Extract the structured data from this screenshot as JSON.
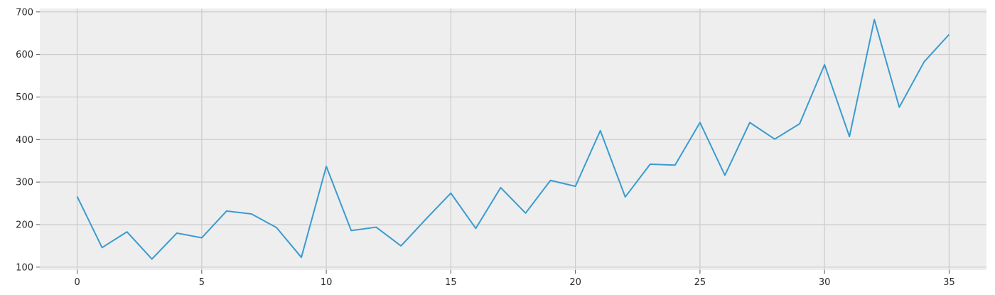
{
  "chart_data": {
    "type": "line",
    "title": "",
    "xlabel": "",
    "ylabel": "",
    "x": [
      0,
      1,
      2,
      3,
      4,
      5,
      6,
      7,
      8,
      9,
      10,
      11,
      12,
      13,
      14,
      15,
      16,
      17,
      18,
      19,
      20,
      21,
      22,
      23,
      24,
      25,
      26,
      27,
      28,
      29,
      30,
      31,
      32,
      33,
      34,
      35
    ],
    "series": [
      {
        "values": [
          266,
          146,
          183,
          119,
          180,
          169,
          232,
          225,
          193,
          123,
          337,
          186,
          194,
          150,
          213,
          274,
          191,
          287,
          227,
          304,
          290,
          421,
          265,
          342,
          340,
          440,
          316,
          440,
          401,
          437,
          576,
          407,
          682,
          476,
          583,
          647
        ],
        "color": "#3a9bd0"
      }
    ],
    "xlim": [
      -1.5,
      36.5
    ],
    "ylim": [
      93,
      708
    ],
    "xticks": [
      0,
      5,
      10,
      15,
      20,
      25,
      30,
      35
    ],
    "yticks": [
      100,
      200,
      300,
      400,
      500,
      600,
      700
    ],
    "xtick_labels": [
      "0",
      "5",
      "10",
      "15",
      "20",
      "25",
      "30",
      "35"
    ],
    "ytick_labels": [
      "100",
      "200",
      "300",
      "400",
      "500",
      "600",
      "700"
    ],
    "grid": true,
    "legend": "none",
    "colors": {
      "plot_background": "#eeeeee",
      "grid": "#cbcbcb",
      "line": "#3a9bd0"
    }
  }
}
